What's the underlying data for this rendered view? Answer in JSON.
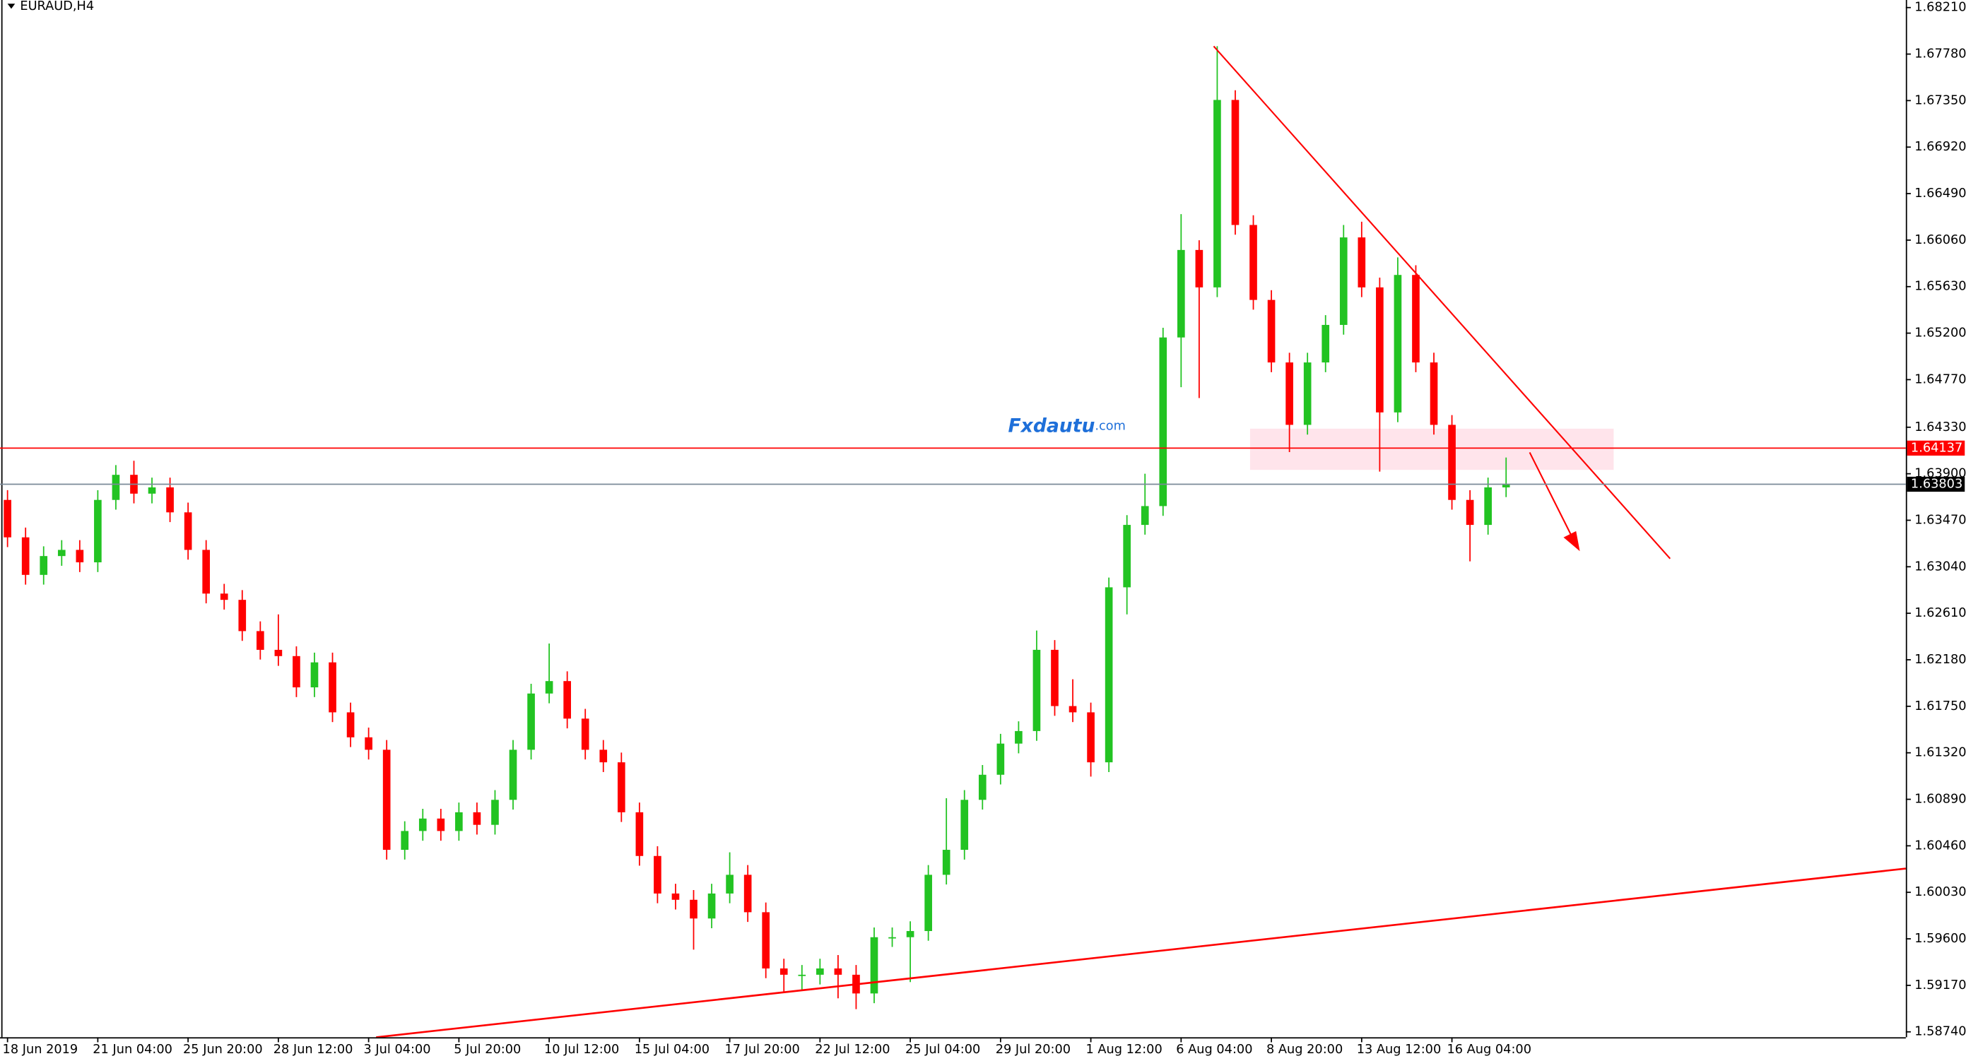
{
  "chart_data": {
    "type": "candlestick",
    "title": "EURAUD,H4",
    "watermark": {
      "brand": "Fxdautu",
      "suffix": ".com"
    },
    "up_color": "#22c322",
    "down_color": "#ff0000",
    "categories": [
      "18 Jun 2019",
      null,
      null,
      null,
      null,
      "21 Jun 04:00",
      null,
      null,
      null,
      null,
      "25 Jun 20:00",
      null,
      null,
      null,
      null,
      "28 Jun 12:00",
      null,
      null,
      null,
      null,
      "3 Jul 04:00",
      null,
      null,
      null,
      null,
      "5 Jul 20:00",
      null,
      null,
      null,
      null,
      "10 Jul 12:00",
      null,
      null,
      null,
      null,
      "15 Jul 04:00",
      null,
      null,
      null,
      null,
      "17 Jul 20:00",
      null,
      null,
      null,
      null,
      "22 Jul 12:00",
      null,
      null,
      null,
      null,
      "25 Jul 04:00",
      null,
      null,
      null,
      null,
      "29 Jul 20:00",
      null,
      null,
      null,
      null,
      "1 Aug 12:00",
      null,
      null,
      null,
      null,
      "6 Aug 04:00",
      null,
      null,
      null,
      null,
      "8 Aug 20:00",
      null,
      null,
      null,
      null,
      "13 Aug 12:00",
      null,
      null,
      null,
      null,
      "16 Aug 04:00",
      null,
      null,
      null
    ],
    "open": [
      1.63658,
      1.63312,
      1.62965,
      1.63139,
      1.63196,
      1.63081,
      1.63658,
      1.6389,
      1.63716,
      1.63774,
      1.63543,
      1.63196,
      1.62792,
      1.62734,
      1.62445,
      1.62272,
      1.62214,
      1.61925,
      1.62156,
      1.61694,
      1.61463,
      1.61348,
      1.60423,
      1.60597,
      1.60712,
      1.60597,
      1.6077,
      1.60654,
      1.60885,
      1.61348,
      1.61868,
      1.61983,
      1.61636,
      1.61348,
      1.61232,
      1.6077,
      1.60366,
      1.60019,
      1.59961,
      1.59788,
      1.60019,
      1.60192,
      1.59846,
      1.59326,
      1.59268,
      1.59268,
      1.59326,
      1.59268,
      1.59095,
      1.59615,
      1.59615,
      1.59672,
      1.60192,
      1.60423,
      1.60885,
      1.61117,
      1.61405,
      1.61521,
      1.62272,
      1.61752,
      1.61694,
      1.61232,
      1.6285,
      1.63427,
      1.63601,
      1.6516,
      1.65969,
      1.65623,
      1.67356,
      1.662,
      1.65507,
      1.64929,
      1.64352,
      1.64929,
      1.65276,
      1.66085,
      1.65623,
      1.64467,
      1.65738,
      1.64929,
      1.64352,
      1.63658,
      1.63427,
      1.63774
    ],
    "high": [
      1.63748,
      1.63402,
      1.63229,
      1.63286,
      1.63286,
      1.63748,
      1.6398,
      1.6402,
      1.63864,
      1.63864,
      1.63633,
      1.63286,
      1.62882,
      1.62824,
      1.62535,
      1.626,
      1.62304,
      1.62246,
      1.62246,
      1.61784,
      1.61553,
      1.61438,
      1.60687,
      1.60802,
      1.60802,
      1.6086,
      1.6086,
      1.60975,
      1.61438,
      1.61958,
      1.6233,
      1.62073,
      1.61726,
      1.61438,
      1.61322,
      1.6086,
      1.60456,
      1.60109,
      1.60051,
      1.60109,
      1.604,
      1.60282,
      1.59936,
      1.59416,
      1.59358,
      1.59416,
      1.5945,
      1.59358,
      1.59705,
      1.59705,
      1.59762,
      1.60282,
      1.609,
      1.60975,
      1.61207,
      1.61495,
      1.61611,
      1.6245,
      1.62362,
      1.62,
      1.61784,
      1.6294,
      1.63517,
      1.639,
      1.6525,
      1.663,
      1.66059,
      1.67853,
      1.67446,
      1.6629,
      1.65597,
      1.65019,
      1.65019,
      1.65366,
      1.662,
      1.6623,
      1.65713,
      1.659,
      1.65828,
      1.65019,
      1.64442,
      1.63748,
      1.63864,
      1.6405
    ],
    "low": [
      1.63222,
      1.62875,
      1.62875,
      1.63049,
      1.62991,
      1.62991,
      1.63568,
      1.63626,
      1.63626,
      1.63453,
      1.63106,
      1.62702,
      1.62644,
      1.62355,
      1.62182,
      1.62124,
      1.61835,
      1.61835,
      1.61604,
      1.61373,
      1.61258,
      1.60333,
      1.60333,
      1.60507,
      1.60507,
      1.60507,
      1.60564,
      1.60564,
      1.60795,
      1.61258,
      1.61778,
      1.61546,
      1.61258,
      1.61142,
      1.6068,
      1.60276,
      1.59929,
      1.59871,
      1.595,
      1.59698,
      1.59929,
      1.59756,
      1.59236,
      1.591,
      1.5912,
      1.59178,
      1.5905,
      1.5895,
      1.59005,
      1.59525,
      1.592,
      1.59582,
      1.60102,
      1.60333,
      1.60795,
      1.61027,
      1.61315,
      1.61431,
      1.61662,
      1.61604,
      1.611,
      1.61142,
      1.626,
      1.63337,
      1.63511,
      1.647,
      1.646,
      1.65533,
      1.6611,
      1.65417,
      1.64839,
      1.641,
      1.64262,
      1.64839,
      1.65186,
      1.65533,
      1.6392,
      1.64377,
      1.64839,
      1.64262,
      1.63568,
      1.6309,
      1.63337,
      1.63684
    ],
    "close": [
      1.63312,
      1.62965,
      1.63139,
      1.63196,
      1.63081,
      1.63658,
      1.6389,
      1.63716,
      1.63774,
      1.63543,
      1.63196,
      1.62792,
      1.62734,
      1.62445,
      1.62272,
      1.62214,
      1.61925,
      1.62156,
      1.61694,
      1.61463,
      1.61348,
      1.60423,
      1.60597,
      1.60712,
      1.60597,
      1.6077,
      1.60654,
      1.60885,
      1.61348,
      1.61868,
      1.61983,
      1.61636,
      1.61348,
      1.61232,
      1.6077,
      1.60366,
      1.60019,
      1.59961,
      1.59788,
      1.60019,
      1.60192,
      1.59846,
      1.59326,
      1.59268,
      1.59268,
      1.59326,
      1.59268,
      1.59095,
      1.59615,
      1.59615,
      1.59672,
      1.60192,
      1.60423,
      1.60885,
      1.61117,
      1.61405,
      1.61521,
      1.62272,
      1.61752,
      1.61694,
      1.61232,
      1.6285,
      1.63427,
      1.63601,
      1.6516,
      1.65969,
      1.65623,
      1.67356,
      1.662,
      1.65507,
      1.64929,
      1.64352,
      1.64929,
      1.65276,
      1.66085,
      1.65623,
      1.64467,
      1.65738,
      1.64929,
      1.64352,
      1.63658,
      1.63427,
      1.63774,
      1.63803
    ],
    "ylim": [
      1.5869,
      1.6828
    ],
    "yticks": [
      {
        "value": 1.5874,
        "label": "1.58740"
      },
      {
        "value": 1.5917,
        "label": "1.59170"
      },
      {
        "value": 1.596,
        "label": "1.59600"
      },
      {
        "value": 1.6003,
        "label": "1.60030"
      },
      {
        "value": 1.6046,
        "label": "1.60460"
      },
      {
        "value": 1.6089,
        "label": "1.60890"
      },
      {
        "value": 1.6132,
        "label": "1.61320"
      },
      {
        "value": 1.6175,
        "label": "1.61750"
      },
      {
        "value": 1.6218,
        "label": "1.62180"
      },
      {
        "value": 1.6261,
        "label": "1.62610"
      },
      {
        "value": 1.6304,
        "label": "1.63040"
      },
      {
        "value": 1.6347,
        "label": "1.63470"
      },
      {
        "value": 1.639,
        "label": "1.63900"
      },
      {
        "value": 1.6433,
        "label": "1.64330"
      },
      {
        "value": 1.6477,
        "label": "1.64770"
      },
      {
        "value": 1.652,
        "label": "1.65200"
      },
      {
        "value": 1.6563,
        "label": "1.65630"
      },
      {
        "value": 1.6606,
        "label": "1.66060"
      },
      {
        "value": 1.6649,
        "label": "1.66490"
      },
      {
        "value": 1.6692,
        "label": "1.66920"
      },
      {
        "value": 1.6735,
        "label": "1.67350"
      },
      {
        "value": 1.6778,
        "label": "1.67780"
      },
      {
        "value": 1.6821,
        "label": "1.68210"
      }
    ],
    "hlines": [
      {
        "value": 1.64137,
        "color": "#ff0000"
      },
      {
        "value": 1.63803,
        "color": "#000000"
      }
    ],
    "grid": false
  }
}
